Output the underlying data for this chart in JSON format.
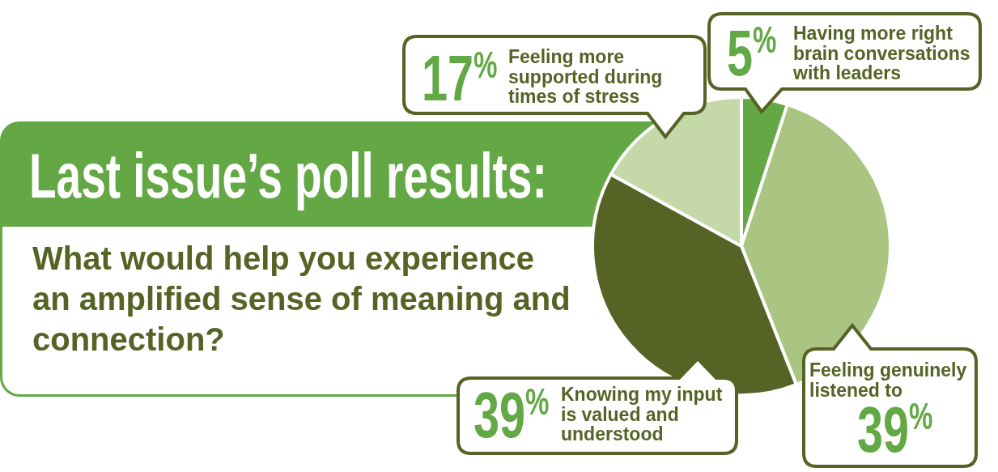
{
  "chart_data": {
    "type": "pie",
    "title": "Last issue’s poll results:",
    "subtitle": "What would help you experience an amplified sense of meaning and connection?",
    "categories": [
      "Having more right brain conversations with leaders",
      "Feeling genuinely listened to",
      "Knowing my input is valued and understood",
      "Feeling more supported during times of stress"
    ],
    "values": [
      5,
      39,
      39,
      17
    ],
    "colors": [
      "#63a844",
      "#aac581",
      "#556325",
      "#c4d8a8"
    ],
    "value_labels": [
      "5%",
      "39%",
      "39%",
      "17%"
    ]
  }
}
